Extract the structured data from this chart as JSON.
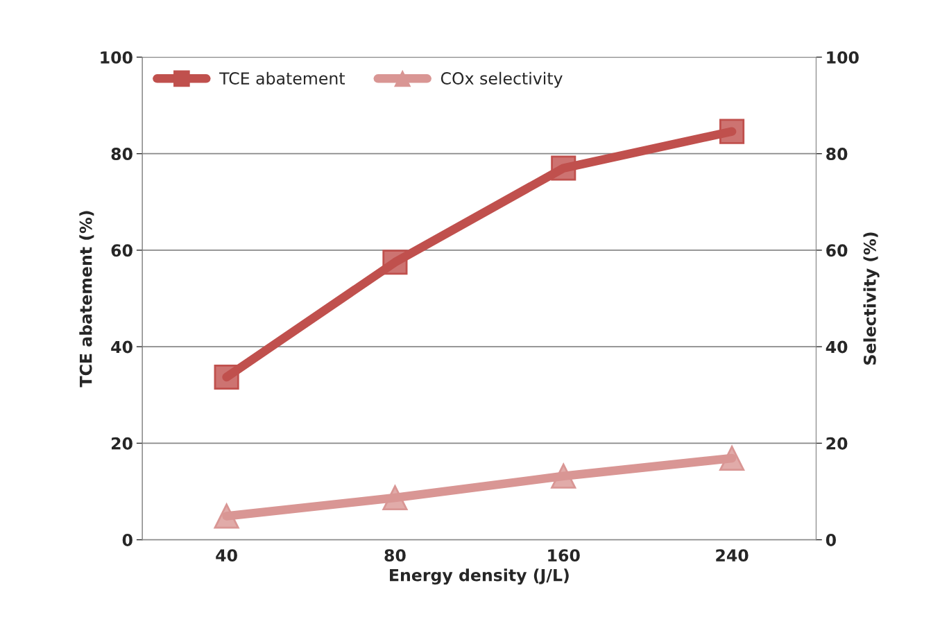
{
  "chart_data": {
    "type": "line",
    "categories": [
      "40",
      "80",
      "160",
      "240"
    ],
    "xlabel": "Energy density (J/L)",
    "ylabel": "TCE abatement (%)",
    "y2label": "Selectivity (%)",
    "series": [
      {
        "name": "TCE abatement",
        "color": "#c0504d",
        "values": [
          33.7,
          57.5,
          77.0,
          84.6
        ],
        "marker": "square"
      },
      {
        "name": "COx selectivity",
        "color": "#d99694",
        "values": [
          4.9,
          8.7,
          13.2,
          16.9
        ],
        "marker": "triangle"
      }
    ],
    "ylim": [
      0,
      100
    ],
    "yticks": [
      0,
      20,
      40,
      60,
      80,
      100
    ],
    "y2lim": [
      0,
      100
    ],
    "y2ticks": [
      0,
      20,
      40,
      60,
      80,
      100
    ],
    "grid": "y",
    "legend": "top left",
    "line_style": "solid"
  }
}
